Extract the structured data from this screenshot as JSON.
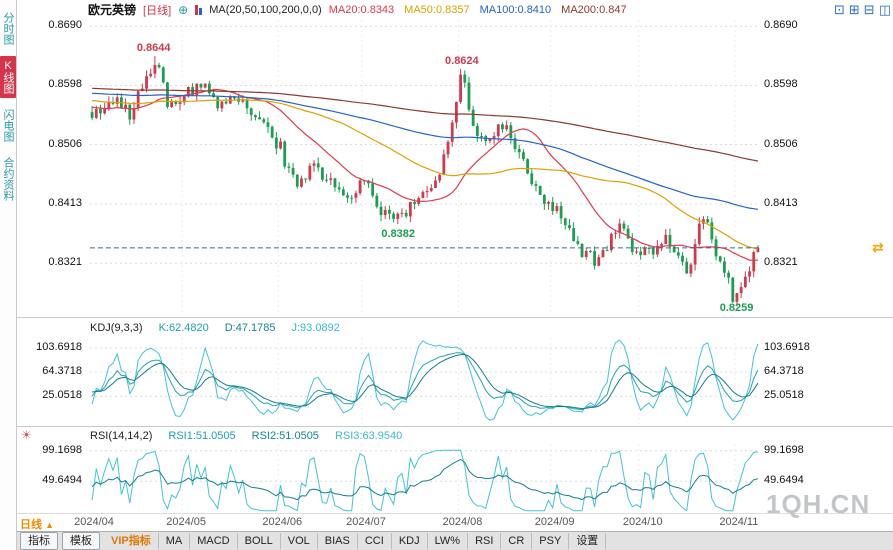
{
  "header": {
    "symbol": "欧元英镑",
    "period_label": "[日线]",
    "ma_settings": "MA(20,50,100,200,0,0)",
    "ma_values": [
      {
        "label": "MA20:0.8343",
        "color": "#e0394e"
      },
      {
        "label": "MA50:0.8357",
        "color": "#d9a300"
      },
      {
        "label": "MA100:0.8410",
        "color": "#2563c9"
      },
      {
        "label": "MA200:0.847",
        "color": "#8c3a2e"
      }
    ],
    "layout_icons": [
      {
        "name": "layout-single-icon",
        "glyph": "⊡"
      },
      {
        "name": "layout-grid-icon",
        "glyph": "⊞"
      },
      {
        "name": "layout-hsplit-icon",
        "glyph": "⊟"
      },
      {
        "name": "layout-vsplit-icon",
        "glyph": "◫"
      }
    ]
  },
  "sidebar": {
    "items": [
      {
        "label": "分时图",
        "name": "time-chart",
        "active": false
      },
      {
        "label": "K线图",
        "name": "kline-chart",
        "active": true
      },
      {
        "label": "闪电图",
        "name": "flash-chart",
        "active": false
      },
      {
        "label": "合约资料",
        "name": "contract-info",
        "active": false
      }
    ]
  },
  "kdj": {
    "header": {
      "title": "KDJ(9,3,3)",
      "k": "K:62.4820",
      "d": "D:47.1785",
      "j": "J:93.0892"
    }
  },
  "rsi": {
    "header": {
      "title": "RSI(14,14,2)",
      "r1": "RSI1:51.0505",
      "r2": "RSI2:51.0505",
      "r3": "RSI3:63.9540"
    }
  },
  "x_axis": {
    "labels": [
      "2024/04",
      "2024/05",
      "2024/06",
      "2024/07",
      "2024/08",
      "2024/09",
      "2024/10",
      "2024/11"
    ],
    "period_badge": "日线"
  },
  "toolbar": {
    "items": [
      {
        "label": "指标",
        "name": "indicator",
        "style": "tab"
      },
      {
        "label": "模板",
        "name": "template",
        "style": "tab"
      },
      {
        "label": "VIP指标",
        "name": "vip-indicator",
        "style": "vip"
      },
      {
        "label": "MA",
        "name": "ma"
      },
      {
        "label": "MACD",
        "name": "macd"
      },
      {
        "label": "BOLL",
        "name": "boll"
      },
      {
        "label": "VOL",
        "name": "vol"
      },
      {
        "label": "BIAS",
        "name": "bias"
      },
      {
        "label": "CCI",
        "name": "cci"
      },
      {
        "label": "KDJ",
        "name": "kdj"
      },
      {
        "label": "LW%",
        "name": "lwr"
      },
      {
        "label": "RSI",
        "name": "rsi"
      },
      {
        "label": "CR",
        "name": "cr"
      },
      {
        "label": "PSY",
        "name": "psy"
      },
      {
        "label": "设置",
        "name": "settings"
      }
    ]
  },
  "watermark": "1QH.CN",
  "icons": {
    "add": "⊕",
    "indicator_config": "☀",
    "price_marker": "⇄",
    "period_up": "▲"
  },
  "chart_data": {
    "type": "candlestick",
    "title": "欧元英镑 日线",
    "main": {
      "price_min": 0.8245,
      "price_max": 0.87,
      "y_ticks": [
        0.869,
        0.8598,
        0.8506,
        0.8413,
        0.8321
      ],
      "current_price": 0.8345,
      "visible_candles": 160,
      "month_fracs": [
        0.0,
        0.1375,
        0.281,
        0.406,
        0.55,
        0.6875,
        0.819,
        0.9625
      ],
      "price_path": [
        [
          0.0,
          0.8555
        ],
        [
          0.03,
          0.8575
        ],
        [
          0.06,
          0.856
        ],
        [
          0.08,
          0.8605
        ],
        [
          0.095,
          0.864
        ],
        [
          0.115,
          0.857
        ],
        [
          0.14,
          0.8585
        ],
        [
          0.165,
          0.8595
        ],
        [
          0.19,
          0.857
        ],
        [
          0.22,
          0.8575
        ],
        [
          0.26,
          0.8545
        ],
        [
          0.305,
          0.8445
        ],
        [
          0.33,
          0.847
        ],
        [
          0.36,
          0.845
        ],
        [
          0.385,
          0.842
        ],
        [
          0.405,
          0.8455
        ],
        [
          0.435,
          0.84
        ],
        [
          0.46,
          0.839
        ],
        [
          0.49,
          0.842
        ],
        [
          0.52,
          0.8445
        ],
        [
          0.555,
          0.8615
        ],
        [
          0.58,
          0.8505
        ],
        [
          0.6,
          0.8525
        ],
        [
          0.625,
          0.8535
        ],
        [
          0.655,
          0.8455
        ],
        [
          0.68,
          0.842
        ],
        [
          0.7,
          0.84
        ],
        [
          0.73,
          0.835
        ],
        [
          0.76,
          0.832
        ],
        [
          0.79,
          0.8385
        ],
        [
          0.82,
          0.833
        ],
        [
          0.845,
          0.8345
        ],
        [
          0.865,
          0.836
        ],
        [
          0.895,
          0.831
        ],
        [
          0.918,
          0.84
        ],
        [
          0.935,
          0.834
        ],
        [
          0.965,
          0.827
        ],
        [
          0.985,
          0.831
        ],
        [
          1.0,
          0.8343
        ]
      ],
      "history_path": [
        [
          0.0,
          0.862
        ],
        [
          0.4,
          0.859
        ],
        [
          0.7,
          0.86
        ],
        [
          1.0,
          0.856
        ]
      ],
      "extremes": [
        {
          "t": 0.095,
          "kind": "high",
          "price": 0.8644,
          "label": "0.8644"
        },
        {
          "t": 0.555,
          "kind": "high",
          "price": 0.8624,
          "label": "0.8624"
        },
        {
          "t": 0.46,
          "kind": "low",
          "price": 0.8382,
          "label": "0.8382"
        },
        {
          "t": 0.965,
          "kind": "low",
          "price": 0.8259,
          "label": "0.8259"
        }
      ],
      "ma": [
        {
          "name": "MA20",
          "window": 20,
          "value": 0.8343,
          "color": "#e0394e"
        },
        {
          "name": "MA50",
          "window": 50,
          "value": 0.8357,
          "color": "#d9a300"
        },
        {
          "name": "MA100",
          "window": 100,
          "value": 0.841,
          "color": "#2563c9"
        },
        {
          "name": "MA200",
          "window": 200,
          "value": 0.847,
          "color": "#8c3a2e"
        }
      ]
    },
    "kdj": {
      "params": [
        9,
        3,
        3
      ],
      "k": 62.482,
      "d": 47.1785,
      "j": 93.0892,
      "y_ticks": [
        103.6918,
        64.3718,
        25.0518
      ],
      "range": [
        -20,
        120
      ]
    },
    "rsi": {
      "params": [
        14,
        14,
        2
      ],
      "rsi1": 51.0505,
      "rsi2": 51.0505,
      "rsi3": 63.954,
      "y_ticks": [
        99.1698,
        49.6494
      ],
      "range": [
        0,
        110
      ]
    },
    "colors": {
      "up": "#cf3a4e",
      "down": "#1b9e51",
      "grid": "#dcdcdc",
      "dashed_line": "#3c6e8f",
      "teal": "#27a3b0",
      "teal_dark": "#147f8c",
      "teal_light": "#45c3d2"
    }
  }
}
